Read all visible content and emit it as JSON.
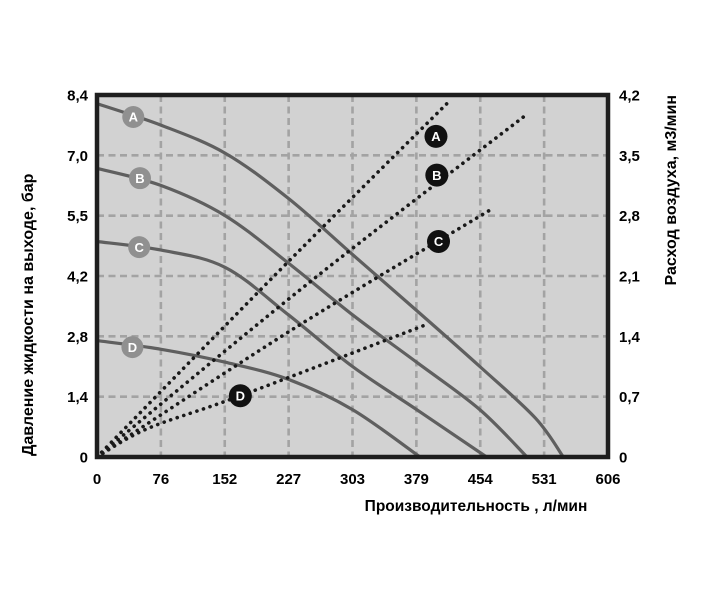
{
  "colors": {
    "page_bg": "#ffffff",
    "plot_bg": "#d2d2d2",
    "grid": "#a3a3a3",
    "frame": "#1e1e1e",
    "solid_curve": "#5f5f5f",
    "solid_badge_fill": "#909090",
    "dotted_curve": "#191919",
    "dotted_badge_fill": "#111111",
    "badge_text": "#ffffff",
    "text": "#000000"
  },
  "chart_data": {
    "type": "line",
    "title": "",
    "grid": true,
    "x_axis": {
      "label": "Производительность , л/мин",
      "tick_labels": [
        "0",
        "76",
        "152",
        "227",
        "303",
        "379",
        "454",
        "531",
        "606"
      ],
      "range": [
        0,
        606
      ]
    },
    "y_axis_left": {
      "label": "Давление жидкости на выходе, бар",
      "tick_labels": [
        "8,4",
        "7,0",
        "5,5",
        "4,2",
        "2,8",
        "1,4",
        "0"
      ],
      "range": [
        0,
        8.4
      ]
    },
    "y_axis_right": {
      "label": "Расход воздуха, м3/мин",
      "tick_labels": [
        "4,2",
        "3,5",
        "2,8",
        "2,1",
        "1,4",
        "0,7",
        "0"
      ],
      "range": [
        0,
        4.2
      ]
    },
    "series": [
      {
        "id": "pressure-A",
        "label": "A",
        "axis": "left",
        "style": "solid",
        "badge_at": [
          43,
          7.89
        ],
        "points": [
          [
            0,
            8.2
          ],
          [
            76,
            7.7
          ],
          [
            152,
            7.05
          ],
          [
            227,
            6.0
          ],
          [
            303,
            4.7
          ],
          [
            379,
            3.4
          ],
          [
            454,
            2.1
          ],
          [
            520,
            0.9
          ],
          [
            553,
            0
          ]
        ]
      },
      {
        "id": "pressure-B",
        "label": "B",
        "axis": "left",
        "style": "solid",
        "badge_at": [
          51,
          6.47
        ],
        "points": [
          [
            0,
            6.7
          ],
          [
            76,
            6.3
          ],
          [
            152,
            5.6
          ],
          [
            227,
            4.5
          ],
          [
            303,
            3.3
          ],
          [
            379,
            2.2
          ],
          [
            454,
            1.1
          ],
          [
            510,
            0
          ]
        ]
      },
      {
        "id": "pressure-C",
        "label": "C",
        "axis": "left",
        "style": "solid",
        "badge_at": [
          50,
          4.87
        ],
        "points": [
          [
            0,
            5.0
          ],
          [
            76,
            4.8
          ],
          [
            152,
            4.4
          ],
          [
            227,
            3.3
          ],
          [
            303,
            2.1
          ],
          [
            379,
            1.1
          ],
          [
            462,
            0
          ]
        ]
      },
      {
        "id": "pressure-D",
        "label": "D",
        "axis": "left",
        "style": "solid",
        "badge_at": [
          42,
          2.55
        ],
        "points": [
          [
            0,
            2.7
          ],
          [
            76,
            2.5
          ],
          [
            152,
            2.2
          ],
          [
            227,
            1.8
          ],
          [
            303,
            1.1
          ],
          [
            383,
            0
          ]
        ]
      },
      {
        "id": "airflow-A",
        "label": "A",
        "axis": "right",
        "style": "dotted",
        "badge_at": [
          402,
          3.72
        ],
        "points": [
          [
            0,
            0
          ],
          [
            210,
            2.1
          ],
          [
            415,
            4.1
          ]
        ]
      },
      {
        "id": "airflow-B",
        "label": "B",
        "axis": "right",
        "style": "dotted",
        "badge_at": [
          403,
          3.27
        ],
        "points": [
          [
            0,
            0
          ],
          [
            255,
            2.05
          ],
          [
            509,
            3.97
          ]
        ]
      },
      {
        "id": "airflow-C",
        "label": "C",
        "axis": "right",
        "style": "dotted",
        "badge_at": [
          405,
          2.5
        ],
        "points": [
          [
            0,
            0
          ],
          [
            235,
            1.5
          ],
          [
            467,
            2.87
          ]
        ]
      },
      {
        "id": "airflow-D",
        "label": "D",
        "axis": "right",
        "style": "dotted",
        "badge_at": [
          170,
          0.71
        ],
        "points": [
          [
            0,
            0
          ],
          [
            60,
            0.33
          ],
          [
            170,
            0.71
          ],
          [
            389,
            1.53
          ]
        ]
      }
    ]
  }
}
